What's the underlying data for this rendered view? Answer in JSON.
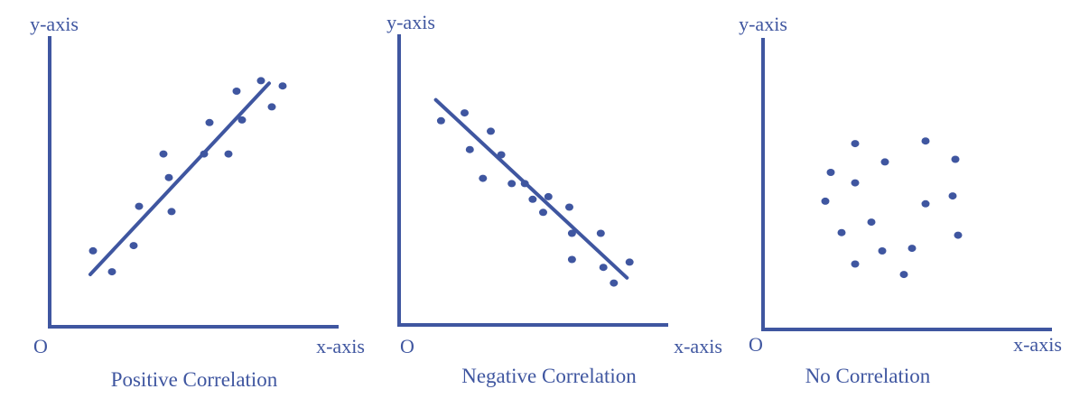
{
  "colors": {
    "ink": "#3f56a0"
  },
  "chart_data": [
    {
      "type": "scatter",
      "caption": "Positive Correlation",
      "ylabel": "y-axis",
      "xlabel": "x-axis",
      "origin_label": "O",
      "xlim": [
        0,
        10
      ],
      "ylim": [
        0,
        10
      ],
      "grid": false,
      "points": [
        {
          "x": 1.6,
          "y": 2.9
        },
        {
          "x": 2.3,
          "y": 2.1
        },
        {
          "x": 3.1,
          "y": 3.1
        },
        {
          "x": 3.3,
          "y": 4.6
        },
        {
          "x": 4.2,
          "y": 6.6
        },
        {
          "x": 4.4,
          "y": 5.7
        },
        {
          "x": 4.5,
          "y": 4.4
        },
        {
          "x": 5.7,
          "y": 6.6
        },
        {
          "x": 5.9,
          "y": 7.8
        },
        {
          "x": 6.6,
          "y": 6.6
        },
        {
          "x": 6.9,
          "y": 9.0
        },
        {
          "x": 7.1,
          "y": 7.9
        },
        {
          "x": 7.8,
          "y": 9.4
        },
        {
          "x": 8.2,
          "y": 8.4
        },
        {
          "x": 8.6,
          "y": 9.2
        }
      ],
      "trend_line": [
        [
          1.5,
          2.0
        ],
        [
          8.1,
          9.3
        ]
      ]
    },
    {
      "type": "scatter",
      "caption": "Negative Correlation",
      "ylabel": "y-axis",
      "xlabel": "x-axis",
      "origin_label": "O",
      "xlim": [
        0,
        10
      ],
      "ylim": [
        0,
        10
      ],
      "grid": false,
      "points": [
        {
          "x": 1.6,
          "y": 7.8
        },
        {
          "x": 2.5,
          "y": 8.1
        },
        {
          "x": 2.7,
          "y": 6.7
        },
        {
          "x": 3.2,
          "y": 5.6
        },
        {
          "x": 3.5,
          "y": 7.4
        },
        {
          "x": 3.9,
          "y": 6.5
        },
        {
          "x": 4.3,
          "y": 5.4
        },
        {
          "x": 4.8,
          "y": 5.4
        },
        {
          "x": 5.1,
          "y": 4.8
        },
        {
          "x": 5.5,
          "y": 4.3
        },
        {
          "x": 5.7,
          "y": 4.9
        },
        {
          "x": 6.5,
          "y": 4.5
        },
        {
          "x": 6.6,
          "y": 3.5
        },
        {
          "x": 6.6,
          "y": 2.5
        },
        {
          "x": 7.7,
          "y": 3.5
        },
        {
          "x": 7.8,
          "y": 2.2
        },
        {
          "x": 8.2,
          "y": 1.6
        },
        {
          "x": 8.8,
          "y": 2.4
        }
      ],
      "trend_line": [
        [
          1.4,
          8.6
        ],
        [
          8.7,
          1.8
        ]
      ]
    },
    {
      "type": "scatter",
      "caption": "No Correlation",
      "ylabel": "y-axis",
      "xlabel": "x-axis",
      "origin_label": "O",
      "xlim": [
        0,
        10
      ],
      "ylim": [
        0,
        10
      ],
      "grid": false,
      "points": [
        {
          "x": 3.4,
          "y": 7.1
        },
        {
          "x": 6.0,
          "y": 7.2
        },
        {
          "x": 2.5,
          "y": 6.0
        },
        {
          "x": 3.4,
          "y": 5.6
        },
        {
          "x": 4.5,
          "y": 6.4
        },
        {
          "x": 7.1,
          "y": 6.5
        },
        {
          "x": 2.3,
          "y": 4.9
        },
        {
          "x": 6.0,
          "y": 4.8
        },
        {
          "x": 7.0,
          "y": 5.1
        },
        {
          "x": 2.9,
          "y": 3.7
        },
        {
          "x": 4.0,
          "y": 4.1
        },
        {
          "x": 7.2,
          "y": 3.6
        },
        {
          "x": 3.4,
          "y": 2.5
        },
        {
          "x": 4.4,
          "y": 3.0
        },
        {
          "x": 5.5,
          "y": 3.1
        },
        {
          "x": 5.2,
          "y": 2.1
        }
      ],
      "trend_line": null
    }
  ]
}
